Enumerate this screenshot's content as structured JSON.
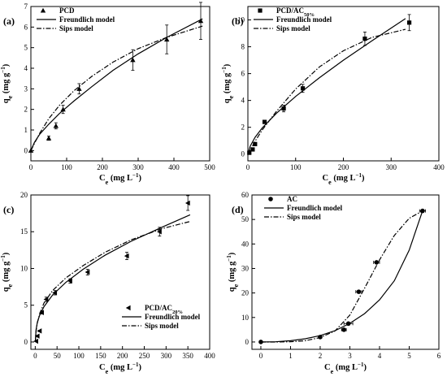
{
  "chart_data": [
    {
      "type": "scatter",
      "panel_label": "(a)",
      "xlabel": "C",
      "xlabel_sub": "e",
      "xlabel_unit": "(mg L",
      "ylabel": "q",
      "ylabel_sub": "e",
      "ylabel_unit": "(mg g",
      "unit_sup": "−1",
      "unit_close": ")",
      "xlim": [
        0,
        500
      ],
      "ylim": [
        -0.5,
        7
      ],
      "xticks": [
        "0",
        "100",
        "200",
        "300",
        "400",
        "500"
      ],
      "yticks": [
        "0",
        "1",
        "2",
        "3",
        "4",
        "5",
        "6",
        "7"
      ],
      "legend_position": "top-left",
      "series": [
        {
          "name": "PCD",
          "kind": "data",
          "marker": "triangle",
          "x": [
            0,
            50,
            70,
            90,
            135,
            285,
            380,
            475
          ],
          "y": [
            0,
            0.6,
            1.2,
            2.0,
            3.0,
            4.4,
            5.4,
            6.3
          ],
          "err": [
            0,
            0.1,
            0.15,
            0.2,
            0.25,
            0.5,
            0.7,
            0.9
          ]
        },
        {
          "name": "Freundlich model",
          "kind": "line",
          "dash": "solid",
          "x": [
            0,
            10,
            25,
            50,
            80,
            120,
            170,
            230,
            300,
            380,
            480
          ],
          "y": [
            0,
            0.4,
            0.8,
            1.28,
            1.8,
            2.4,
            3.1,
            3.9,
            4.7,
            5.5,
            6.4
          ]
        },
        {
          "name": "Sips model",
          "kind": "line",
          "dash": "dashdot",
          "x": [
            0,
            10,
            25,
            50,
            80,
            120,
            170,
            230,
            300,
            380,
            480
          ],
          "y": [
            0,
            0.35,
            0.85,
            1.55,
            2.2,
            2.9,
            3.6,
            4.3,
            4.95,
            5.5,
            6.05
          ]
        }
      ]
    },
    {
      "type": "scatter",
      "panel_label": "(b)",
      "xlabel": "C",
      "xlabel_sub": "e",
      "xlabel_unit": "(mg L",
      "ylabel": "q",
      "ylabel_sub": "e",
      "ylabel_unit": "(mg g",
      "unit_sup": "−1",
      "unit_close": ")",
      "xlim": [
        0,
        400
      ],
      "ylim": [
        -0.5,
        11
      ],
      "xticks": [
        "0",
        "100",
        "200",
        "300",
        "400"
      ],
      "yticks": [
        "0",
        "2",
        "4",
        "6",
        "8",
        "10"
      ],
      "legend_position": "top-left",
      "series": [
        {
          "name": "PCD/AC",
          "name_sub": "50%",
          "kind": "data",
          "marker": "square",
          "x": [
            3,
            10,
            15,
            35,
            75,
            115,
            245,
            338
          ],
          "y": [
            0.1,
            0.35,
            0.75,
            2.4,
            3.4,
            4.9,
            8.6,
            9.8
          ],
          "err": [
            0,
            0.05,
            0.1,
            0.1,
            0.25,
            0.3,
            0.5,
            0.6
          ]
        },
        {
          "name": "Freundlich model",
          "kind": "line",
          "dash": "solid",
          "x": [
            0,
            5,
            15,
            30,
            60,
            100,
            150,
            200,
            260,
            330
          ],
          "y": [
            0,
            0.6,
            1.25,
            1.95,
            3.05,
            4.3,
            5.7,
            7.0,
            8.45,
            10.1
          ]
        },
        {
          "name": "Sips model",
          "kind": "line",
          "dash": "dashdot",
          "x": [
            0,
            5,
            15,
            30,
            60,
            100,
            150,
            200,
            260,
            330
          ],
          "y": [
            0,
            0.3,
            0.95,
            1.8,
            3.2,
            4.85,
            6.5,
            7.7,
            8.7,
            9.3
          ]
        }
      ]
    },
    {
      "type": "scatter",
      "panel_label": "(c)",
      "xlabel": "C",
      "xlabel_sub": "e",
      "xlabel_unit": "(mg L",
      "ylabel": "q",
      "ylabel_sub": "e",
      "ylabel_unit": "(mg g",
      "unit_sup": "−1",
      "unit_close": ")",
      "xlim": [
        -10,
        400
      ],
      "ylim": [
        -1,
        20
      ],
      "xticks": [
        "0",
        "50",
        "100",
        "150",
        "200",
        "250",
        "300",
        "350",
        "400"
      ],
      "yticks": [
        "0",
        "5",
        "10",
        "15",
        "20"
      ],
      "legend_position": "bottom-right",
      "series": [
        {
          "name": "PCD/AC",
          "name_sub": "20%",
          "kind": "data",
          "marker": "left-triangle",
          "x": [
            2,
            5,
            10,
            15,
            25,
            45,
            80,
            120,
            210,
            285,
            350
          ],
          "y": [
            0.1,
            0.8,
            1.5,
            4.0,
            5.8,
            6.7,
            8.3,
            9.5,
            11.7,
            15.0,
            18.9
          ],
          "err": [
            0,
            0.1,
            0.1,
            0.2,
            0.3,
            0.3,
            0.3,
            0.4,
            0.5,
            0.6,
            1.0
          ]
        },
        {
          "name": "Freundlich model",
          "kind": "line",
          "dash": "solid",
          "x": [
            0,
            2,
            5,
            10,
            20,
            40,
            70,
            110,
            160,
            220,
            290,
            355
          ],
          "y": [
            0,
            1.7,
            2.7,
            3.6,
            4.8,
            6.4,
            8.1,
            9.9,
            11.8,
            13.7,
            15.6,
            17.3
          ]
        },
        {
          "name": "Sips model",
          "kind": "line",
          "dash": "dashdot",
          "x": [
            0,
            2,
            5,
            10,
            20,
            40,
            70,
            110,
            160,
            220,
            290,
            355
          ],
          "y": [
            0,
            1.5,
            2.6,
            3.8,
            5.3,
            7.0,
            8.7,
            10.4,
            12.2,
            13.9,
            15.4,
            16.4
          ]
        }
      ]
    },
    {
      "type": "scatter",
      "panel_label": "(d)",
      "xlabel": "C",
      "xlabel_sub": "e",
      "xlabel_unit": "(mg L",
      "ylabel": "q",
      "ylabel_sub": "e",
      "ylabel_unit": "(mg g",
      "unit_sup": "−1",
      "unit_close": ")",
      "xlim": [
        -0.3,
        6
      ],
      "ylim": [
        -3,
        60
      ],
      "xticks": [
        "0",
        "1",
        "2",
        "3",
        "4",
        "5",
        "6"
      ],
      "yticks": [
        "0",
        "10",
        "20",
        "30",
        "40",
        "50",
        "60"
      ],
      "legend_position": "top-left",
      "series": [
        {
          "name": "AC",
          "kind": "data",
          "marker": "circle",
          "x": [
            0,
            2.0,
            2.8,
            2.95,
            3.3,
            3.9,
            5.45
          ],
          "y": [
            0,
            2.0,
            5.0,
            7.5,
            20.5,
            32.5,
            53.5
          ],
          "xerr": [
            0,
            0.05,
            0.08,
            0.15,
            0.1,
            0.1,
            0.1
          ]
        },
        {
          "name": "Freundlich model",
          "kind": "line",
          "dash": "solid",
          "x": [
            0,
            0.5,
            1.0,
            1.5,
            2.0,
            2.5,
            3.0,
            3.5,
            4.0,
            4.5,
            5.0,
            5.45
          ],
          "y": [
            0,
            0.1,
            0.5,
            1.3,
            2.6,
            4.6,
            7.6,
            11.6,
            17.2,
            25.0,
            37.5,
            53.5
          ]
        },
        {
          "name": "Sips model",
          "kind": "line",
          "dash": "dashdot",
          "x": [
            0,
            0.5,
            1.0,
            1.5,
            2.0,
            2.5,
            3.0,
            3.5,
            4.0,
            4.5,
            5.0,
            5.45
          ],
          "y": [
            0,
            0,
            0.1,
            0.5,
            1.8,
            4.5,
            11.0,
            22.0,
            33.5,
            43.5,
            50.5,
            53.5
          ]
        }
      ]
    }
  ]
}
